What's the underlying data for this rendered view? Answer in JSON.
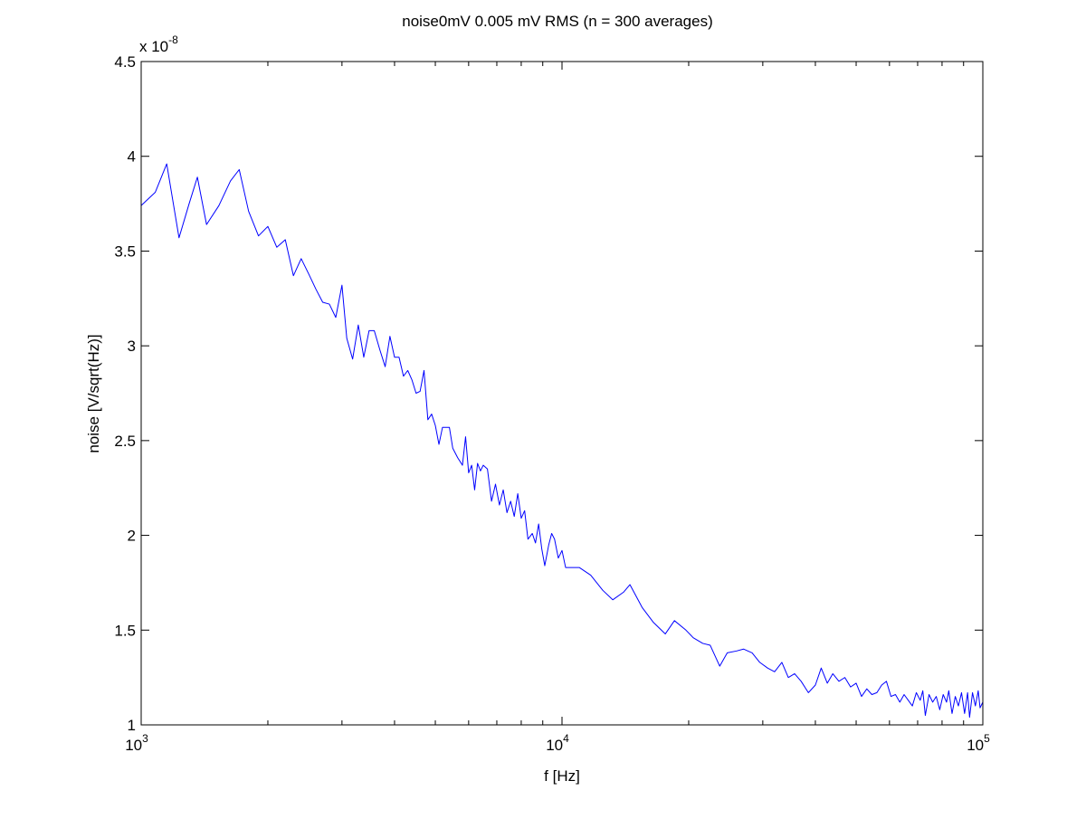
{
  "chart_data": {
    "type": "line",
    "title": "noise0mV 0.005 mV RMS (n = 300 averages)",
    "xlabel": "f [Hz]",
    "ylabel": "noise [V/sqrt(Hz)]",
    "xscale": "log",
    "xlim": [
      1000,
      100000
    ],
    "ylim": [
      1e-08,
      4.5e-08
    ],
    "y_multiplier_label": {
      "base": "x 10",
      "exponent": "-8"
    },
    "x_ticks": [
      {
        "value": 1000,
        "base": "10",
        "exponent": "3"
      },
      {
        "value": 10000,
        "base": "10",
        "exponent": "4"
      },
      {
        "value": 100000,
        "base": "10",
        "exponent": "5"
      }
    ],
    "y_ticks": [
      {
        "value": 1e-08,
        "label": "1"
      },
      {
        "value": 1.5e-08,
        "label": "1.5"
      },
      {
        "value": 2e-08,
        "label": "2"
      },
      {
        "value": 2.5e-08,
        "label": "2.5"
      },
      {
        "value": 3e-08,
        "label": "3"
      },
      {
        "value": 3.5e-08,
        "label": "3.5"
      },
      {
        "value": 4e-08,
        "label": "4"
      },
      {
        "value": 4.5e-08,
        "label": "4.5"
      }
    ],
    "grid": false,
    "legend": "none",
    "series": [
      {
        "color": "#0000ff",
        "points": [
          [
            1000,
            3.74e-08
          ],
          [
            1080,
            3.81e-08
          ],
          [
            1150,
            3.96e-08
          ],
          [
            1230,
            3.57e-08
          ],
          [
            1300,
            3.75e-08
          ],
          [
            1360,
            3.89e-08
          ],
          [
            1430,
            3.64e-08
          ],
          [
            1530,
            3.74e-08
          ],
          [
            1630,
            3.87e-08
          ],
          [
            1710,
            3.93e-08
          ],
          [
            1800,
            3.71e-08
          ],
          [
            1900,
            3.58e-08
          ],
          [
            2000,
            3.63e-08
          ],
          [
            2100,
            3.52e-08
          ],
          [
            2200,
            3.56e-08
          ],
          [
            2300,
            3.37e-08
          ],
          [
            2400,
            3.46e-08
          ],
          [
            2500,
            3.38e-08
          ],
          [
            2600,
            3.3e-08
          ],
          [
            2700,
            3.23e-08
          ],
          [
            2800,
            3.22e-08
          ],
          [
            2900,
            3.15e-08
          ],
          [
            3000,
            3.32e-08
          ],
          [
            3080,
            3.04e-08
          ],
          [
            3180,
            2.93e-08
          ],
          [
            3280,
            3.11e-08
          ],
          [
            3380,
            2.94e-08
          ],
          [
            3480,
            3.08e-08
          ],
          [
            3580,
            3.08e-08
          ],
          [
            3690,
            2.98e-08
          ],
          [
            3800,
            2.89e-08
          ],
          [
            3900,
            3.05e-08
          ],
          [
            4000,
            2.94e-08
          ],
          [
            4100,
            2.94e-08
          ],
          [
            4200,
            2.84e-08
          ],
          [
            4300,
            2.87e-08
          ],
          [
            4400,
            2.82e-08
          ],
          [
            4500,
            2.75e-08
          ],
          [
            4600,
            2.76e-08
          ],
          [
            4700,
            2.87e-08
          ],
          [
            4800,
            2.61e-08
          ],
          [
            4900,
            2.64e-08
          ],
          [
            5000,
            2.58e-08
          ],
          [
            5100,
            2.48e-08
          ],
          [
            5200,
            2.57e-08
          ],
          [
            5400,
            2.57e-08
          ],
          [
            5500,
            2.46e-08
          ],
          [
            5650,
            2.41e-08
          ],
          [
            5800,
            2.37e-08
          ],
          [
            5900,
            2.52e-08
          ],
          [
            6000,
            2.33e-08
          ],
          [
            6100,
            2.37e-08
          ],
          [
            6200,
            2.24e-08
          ],
          [
            6300,
            2.38e-08
          ],
          [
            6400,
            2.34e-08
          ],
          [
            6500,
            2.37e-08
          ],
          [
            6650,
            2.35e-08
          ],
          [
            6800,
            2.18e-08
          ],
          [
            6950,
            2.27e-08
          ],
          [
            7100,
            2.16e-08
          ],
          [
            7250,
            2.24e-08
          ],
          [
            7400,
            2.12e-08
          ],
          [
            7550,
            2.18e-08
          ],
          [
            7700,
            2.1e-08
          ],
          [
            7850,
            2.22e-08
          ],
          [
            8000,
            2.09e-08
          ],
          [
            8150,
            2.13e-08
          ],
          [
            8300,
            1.98e-08
          ],
          [
            8500,
            2.01e-08
          ],
          [
            8650,
            1.96e-08
          ],
          [
            8800,
            2.06e-08
          ],
          [
            8950,
            1.93e-08
          ],
          [
            9100,
            1.84e-08
          ],
          [
            9300,
            1.95e-08
          ],
          [
            9450,
            2.01e-08
          ],
          [
            9600,
            1.98e-08
          ],
          [
            9800,
            1.88e-08
          ],
          [
            10000,
            1.92e-08
          ],
          [
            10200,
            1.83e-08
          ],
          [
            11000,
            1.83e-08
          ],
          [
            11700,
            1.79e-08
          ],
          [
            12500,
            1.71e-08
          ],
          [
            13200,
            1.66e-08
          ],
          [
            14000,
            1.7e-08
          ],
          [
            14500,
            1.74e-08
          ],
          [
            15500,
            1.62e-08
          ],
          [
            16500,
            1.54e-08
          ],
          [
            17600,
            1.48e-08
          ],
          [
            18500,
            1.55e-08
          ],
          [
            19700,
            1.5e-08
          ],
          [
            20500,
            1.46e-08
          ],
          [
            21600,
            1.43e-08
          ],
          [
            22500,
            1.42e-08
          ],
          [
            23700,
            1.31e-08
          ],
          [
            24700,
            1.38e-08
          ],
          [
            26000,
            1.39e-08
          ],
          [
            27000,
            1.4e-08
          ],
          [
            28300,
            1.38e-08
          ],
          [
            29500,
            1.33e-08
          ],
          [
            30800,
            1.3e-08
          ],
          [
            32000,
            1.28e-08
          ],
          [
            33300,
            1.33e-08
          ],
          [
            34500,
            1.25e-08
          ],
          [
            35700,
            1.27e-08
          ],
          [
            37000,
            1.23e-08
          ],
          [
            38500,
            1.17e-08
          ],
          [
            40000,
            1.21e-08
          ],
          [
            41300,
            1.3e-08
          ],
          [
            42700,
            1.22e-08
          ],
          [
            44000,
            1.27e-08
          ],
          [
            45500,
            1.23e-08
          ],
          [
            47000,
            1.25e-08
          ],
          [
            48500,
            1.2e-08
          ],
          [
            50000,
            1.22e-08
          ],
          [
            51500,
            1.15e-08
          ],
          [
            53000,
            1.19e-08
          ],
          [
            54500,
            1.16e-08
          ],
          [
            56000,
            1.17e-08
          ],
          [
            57500,
            1.21e-08
          ],
          [
            59000,
            1.23e-08
          ],
          [
            60500,
            1.15e-08
          ],
          [
            62000,
            1.16e-08
          ],
          [
            63500,
            1.12e-08
          ],
          [
            65000,
            1.16e-08
          ],
          [
            66500,
            1.13e-08
          ],
          [
            68000,
            1.1e-08
          ],
          [
            69500,
            1.17e-08
          ],
          [
            71000,
            1.13e-08
          ],
          [
            72000,
            1.18e-08
          ],
          [
            73000,
            1.05e-08
          ],
          [
            74500,
            1.16e-08
          ],
          [
            76000,
            1.12e-08
          ],
          [
            77500,
            1.15e-08
          ],
          [
            79000,
            1.08e-08
          ],
          [
            80500,
            1.16e-08
          ],
          [
            82000,
            1.12e-08
          ],
          [
            83000,
            1.18e-08
          ],
          [
            84500,
            1.06e-08
          ],
          [
            86000,
            1.15e-08
          ],
          [
            87500,
            1.1e-08
          ],
          [
            89000,
            1.17e-08
          ],
          [
            90500,
            1.06e-08
          ],
          [
            92000,
            1.17e-08
          ],
          [
            93000,
            1.04e-08
          ],
          [
            94500,
            1.17e-08
          ],
          [
            96000,
            1.1e-08
          ],
          [
            97500,
            1.18e-08
          ],
          [
            98500,
            1.09e-08
          ],
          [
            100000,
            1.12e-08
          ]
        ]
      }
    ]
  }
}
